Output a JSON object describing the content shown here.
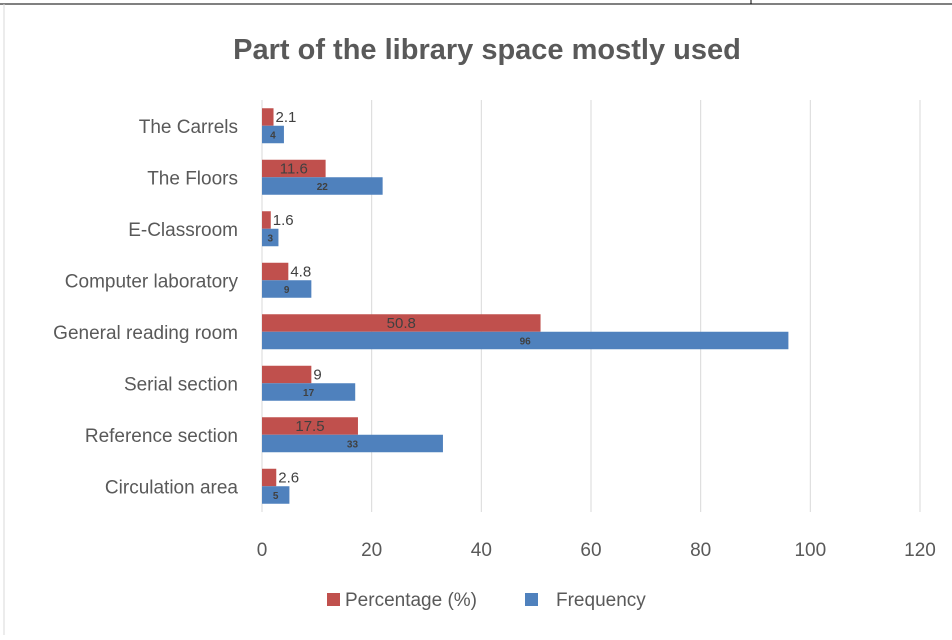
{
  "chart_data": {
    "type": "bar",
    "orientation": "horizontal",
    "title": "Part of the library space mostly used",
    "categories": [
      "Circulation area",
      "Reference section",
      "Serial section",
      "General reading room",
      "Computer laboratory",
      "E-Classroom",
      "The Floors",
      "The Carrels"
    ],
    "series": [
      {
        "name": "Percentage (%)",
        "color": "#c0504d",
        "values": [
          2.6,
          17.5,
          9,
          50.8,
          4.8,
          1.6,
          11.6,
          2.1
        ]
      },
      {
        "name": "Frequency",
        "color": "#4f81bd",
        "values": [
          5,
          33,
          17,
          96,
          9,
          3,
          22,
          4
        ]
      }
    ],
    "xlim": [
      0,
      120
    ],
    "xticks": [
      0,
      20,
      40,
      60,
      80,
      100,
      120
    ],
    "grid": true,
    "legend": "bottom"
  }
}
